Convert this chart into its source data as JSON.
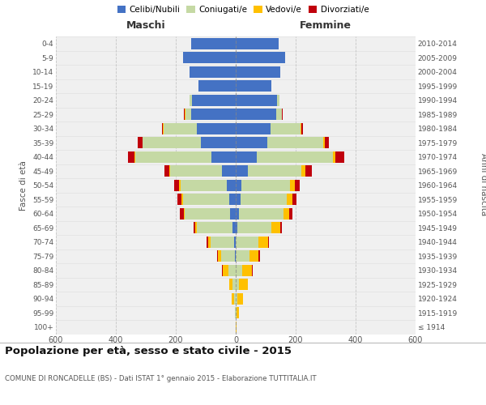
{
  "age_groups": [
    "100+",
    "95-99",
    "90-94",
    "85-89",
    "80-84",
    "75-79",
    "70-74",
    "65-69",
    "60-64",
    "55-59",
    "50-54",
    "45-49",
    "40-44",
    "35-39",
    "30-34",
    "25-29",
    "20-24",
    "15-19",
    "10-14",
    "5-9",
    "0-4"
  ],
  "birth_years": [
    "≤ 1914",
    "1915-1919",
    "1920-1924",
    "1925-1929",
    "1930-1934",
    "1935-1939",
    "1940-1944",
    "1945-1949",
    "1950-1954",
    "1955-1959",
    "1960-1964",
    "1965-1969",
    "1970-1974",
    "1975-1979",
    "1980-1984",
    "1985-1989",
    "1990-1994",
    "1995-1999",
    "2000-2004",
    "2005-2009",
    "2010-2014"
  ],
  "maschi_celibe": [
    0,
    0,
    0,
    0,
    0,
    3,
    5,
    10,
    20,
    22,
    30,
    45,
    80,
    115,
    130,
    150,
    145,
    125,
    155,
    175,
    150
  ],
  "maschi_coniugato": [
    0,
    2,
    5,
    10,
    25,
    45,
    80,
    120,
    150,
    155,
    155,
    175,
    255,
    195,
    110,
    18,
    8,
    0,
    0,
    0,
    0
  ],
  "maschi_vedovo": [
    0,
    2,
    8,
    12,
    18,
    12,
    8,
    5,
    4,
    3,
    3,
    2,
    2,
    2,
    2,
    1,
    0,
    0,
    0,
    0,
    0
  ],
  "maschi_divorziato": [
    0,
    0,
    0,
    0,
    2,
    2,
    4,
    5,
    12,
    15,
    18,
    15,
    22,
    15,
    5,
    3,
    1,
    0,
    0,
    0,
    0
  ],
  "femmine_celibe": [
    0,
    0,
    0,
    0,
    0,
    0,
    0,
    5,
    10,
    15,
    20,
    40,
    70,
    105,
    115,
    135,
    138,
    118,
    148,
    165,
    142
  ],
  "femmine_coniugata": [
    0,
    2,
    5,
    12,
    22,
    45,
    75,
    115,
    150,
    155,
    160,
    180,
    255,
    188,
    100,
    18,
    8,
    0,
    0,
    0,
    0
  ],
  "femmine_vedova": [
    3,
    8,
    20,
    28,
    32,
    32,
    32,
    28,
    18,
    18,
    16,
    12,
    8,
    5,
    3,
    2,
    0,
    0,
    0,
    0,
    0
  ],
  "femmine_divorziata": [
    0,
    0,
    0,
    0,
    2,
    3,
    4,
    6,
    10,
    14,
    18,
    22,
    28,
    14,
    5,
    3,
    1,
    0,
    0,
    0,
    0
  ],
  "colors": {
    "celibe": "#4472c4",
    "coniugato": "#c5d9a4",
    "vedovo": "#ffc000",
    "divorziato": "#c0000c"
  },
  "xlim": 600,
  "title": "Popolazione per età, sesso e stato civile - 2015",
  "subtitle": "COMUNE DI RONCADELLE (BS) - Dati ISTAT 1° gennaio 2015 - Elaborazione TUTTITALIA.IT",
  "ylabel": "Fasce di età",
  "ylabel_right": "Anni di nascita",
  "bg_color": "#f0f0f0",
  "grid_color": "#cccccc",
  "legend_labels": [
    "Celibi/Nubili",
    "Coniugati/e",
    "Vedovi/e",
    "Divorziati/e"
  ]
}
